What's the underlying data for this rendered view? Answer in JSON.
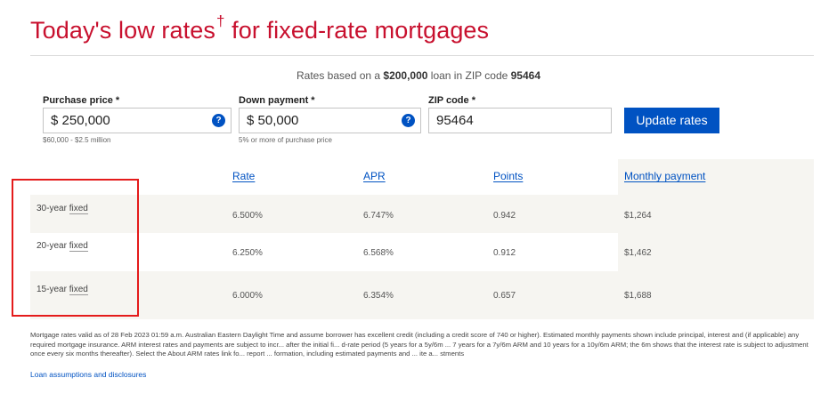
{
  "heading": {
    "title": "Today's low rates",
    "dagger": "†",
    "suffix": "for fixed-rate mortgages"
  },
  "basis": {
    "prefix": "Rates based on a ",
    "loan_amount": "$200,000",
    "middle": " loan in ZIP code ",
    "zip": "95464"
  },
  "form": {
    "purchase_price": {
      "label": "Purchase price *",
      "value": "$ 250,000",
      "hint": "$60,000 - $2.5 million",
      "help": "?"
    },
    "down_payment": {
      "label": "Down payment *",
      "value": "$ 50,000",
      "hint": "5% or more of purchase price",
      "help": "?"
    },
    "zip_code": {
      "label": "ZIP code *",
      "value": "95464"
    },
    "update_button": "Update rates"
  },
  "table": {
    "headers": [
      "Rate",
      "APR",
      "Points",
      "Monthly payment"
    ],
    "rows": [
      {
        "term": "30-year",
        "type": "fixed",
        "rate": "6.500%",
        "apr": "6.747%",
        "points": "0.942",
        "payment": "$1,264"
      },
      {
        "term": "20-year",
        "type": "fixed",
        "rate": "6.250%",
        "apr": "6.568%",
        "points": "0.912",
        "payment": "$1,462"
      },
      {
        "term": "15-year",
        "type": "fixed",
        "rate": "6.000%",
        "apr": "6.354%",
        "points": "0.657",
        "payment": "$1,688"
      }
    ]
  },
  "disclaimer": "Mortgage rates valid as of 28 Feb 2023 01:59 a.m. Australian Eastern Daylight Time and assume borrower has excellent credit (including a credit score of 740 or higher). Estimated monthly payments shown include principal, interest and (if applicable) any required mortgage insurance. ARM interest rates and payments are subject to incr... after the initial fi... d-rate period (5 years for a 5y/6m ... 7 years for a 7y/6m ARM and 10 years for a 10y/6m ARM; the 6m shows that the interest rate is subject to adjustment once every six months thereafter). Select the About ARM rates link fo... report ... formation, including estimated payments and ... ite a... stments",
  "footer_link": "Loan assumptions and disclosures",
  "colors": {
    "brand_red": "#c8102e",
    "link_blue": "#0052c2",
    "highlight_red": "#e41b1b",
    "row_shade": "#eeede8"
  }
}
